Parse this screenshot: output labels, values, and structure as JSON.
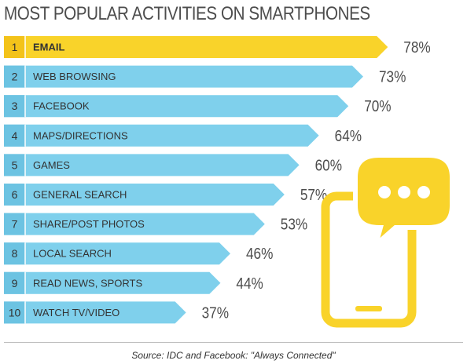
{
  "chart_data": {
    "type": "bar",
    "title": "MOST POPULAR ACTIVITIES ON SMARTPHONES",
    "ranks": [
      "1",
      "2",
      "3",
      "4",
      "5",
      "6",
      "7",
      "8",
      "9",
      "10"
    ],
    "categories": [
      "EMAIL",
      "WEB BROWSING",
      "FACEBOOK",
      "MAPS/DIRECTIONS",
      "GAMES",
      "GENERAL SEARCH",
      "SHARE/POST PHOTOS",
      "LOCAL SEARCH",
      "READ NEWS, SPORTS",
      "WATCH TV/VIDEO"
    ],
    "values": [
      78,
      73,
      70,
      64,
      60,
      57,
      53,
      46,
      44,
      37
    ],
    "value_labels": [
      "78%",
      "73%",
      "70%",
      "64%",
      "60%",
      "57%",
      "53%",
      "46%",
      "44%",
      "37%"
    ],
    "highlight_index": 0,
    "colors": {
      "highlight": "#f9d32a",
      "bar": "#7fd0ec",
      "rank_highlight": "#f3c31a",
      "rank_bar": "#6cc3e2",
      "phone": "#f9d32a",
      "text": "#333333"
    },
    "icon": "smartphone-chat-bubble-icon"
  },
  "source": "Source: IDC and Facebook: \"Always Connected\""
}
